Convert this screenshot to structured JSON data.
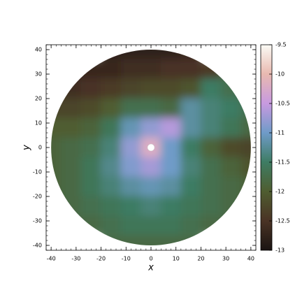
{
  "chart_data": {
    "type": "heatmap",
    "xlabel": "x",
    "ylabel": "y",
    "xlim": [
      -42,
      42
    ],
    "ylim": [
      -42,
      42
    ],
    "xticks": [
      -40,
      -30,
      -20,
      -10,
      0,
      10,
      20,
      30,
      40
    ],
    "yticks": [
      -40,
      -30,
      -20,
      -10,
      0,
      10,
      20,
      30,
      40
    ],
    "x": [
      -40,
      -32,
      -24,
      -16,
      -8,
      0,
      8,
      16,
      24,
      32,
      40
    ],
    "y": [
      40,
      32,
      24,
      16,
      8,
      0,
      -8,
      -16,
      -24,
      -32,
      -40
    ],
    "z": [
      [
        null,
        null,
        null,
        -12.8,
        -12.8,
        -12.8,
        -12.8,
        -12.7,
        null,
        null,
        null
      ],
      [
        null,
        -12.7,
        -12.7,
        -12.7,
        -12.6,
        -12.6,
        -12.5,
        -12.5,
        -12.4,
        -11.8,
        null
      ],
      [
        -12.6,
        -12.6,
        -12.5,
        -12.4,
        -12.3,
        -12.2,
        -12.2,
        -12.1,
        -11.5,
        -11.7,
        -11.8
      ],
      [
        -12.3,
        -12.3,
        -12.2,
        -12.0,
        -11.7,
        -11.7,
        -11.8,
        -11.2,
        -11.4,
        -11.5,
        -11.7
      ],
      [
        -12.0,
        -12.0,
        -11.9,
        -11.6,
        -11.1,
        -10.8,
        -10.6,
        -11.2,
        -11.4,
        -11.6,
        -11.8
      ],
      [
        -11.9,
        -11.8,
        -11.7,
        -11.4,
        -10.8,
        -10.2,
        -11.0,
        -11.5,
        -11.9,
        -12.2,
        -12.3
      ],
      [
        -11.9,
        -11.8,
        -11.6,
        -11.3,
        -10.9,
        -10.7,
        -11.0,
        -11.4,
        -11.7,
        -11.9,
        -12.1
      ],
      [
        -11.9,
        -11.8,
        -11.6,
        -11.4,
        -11.2,
        -11.1,
        -11.2,
        -11.5,
        -11.7,
        -11.8,
        -11.9
      ],
      [
        -11.9,
        -11.8,
        -11.7,
        -11.6,
        -11.5,
        -11.4,
        -11.5,
        -11.6,
        -11.7,
        -11.8,
        -11.9
      ],
      [
        null,
        -11.8,
        -11.8,
        -11.7,
        -11.6,
        -11.6,
        -11.6,
        -11.7,
        -11.8,
        -11.8,
        null
      ],
      [
        null,
        null,
        null,
        -11.8,
        -11.8,
        -11.8,
        -11.8,
        -11.8,
        null,
        null,
        null
      ]
    ],
    "clim": [
      -13,
      -9.5
    ],
    "cticks": [
      -13,
      -12.5,
      -12,
      -11.5,
      -11,
      -10.5,
      -10,
      -9.5
    ],
    "colormap": [
      "#1a1412",
      "#4a3325",
      "#4f5d30",
      "#3e7c63",
      "#6f9bc8",
      "#c79ae0",
      "#e8b9b0",
      "#fbfbf5"
    ]
  }
}
